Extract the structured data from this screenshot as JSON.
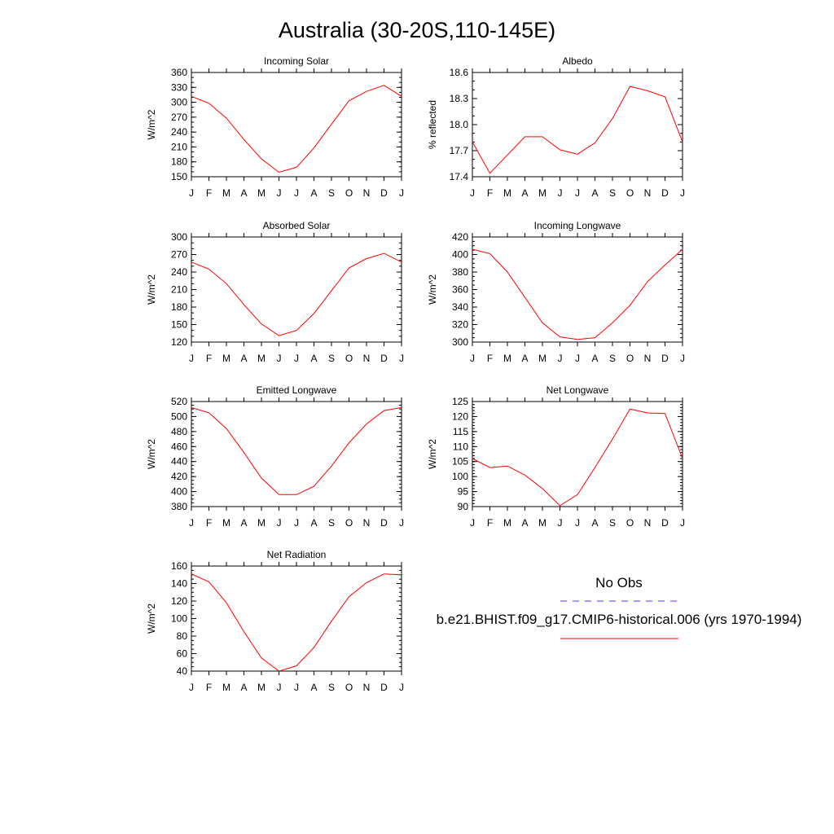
{
  "figure": {
    "title": "Australia (30-20S,110-145E)",
    "legend": [
      {
        "label": "No Obs",
        "color": "#3c3cff",
        "style": "dashed"
      },
      {
        "label": "b.e21.BHIST.f09_g17.CMIP6-historical.006 (yrs 1970-1994)",
        "color": "#ff0000",
        "style": "solid"
      }
    ]
  },
  "chart_data": [
    {
      "type": "line",
      "title": "Incoming Solar",
      "ylabel": "W/m^2",
      "x": [
        "J",
        "F",
        "M",
        "A",
        "M",
        "J",
        "J",
        "A",
        "S",
        "O",
        "N",
        "D",
        "J"
      ],
      "ylim": [
        150,
        360
      ],
      "yticks": [
        150,
        180,
        210,
        240,
        270,
        300,
        330,
        360
      ],
      "minor_step": 10,
      "series": [
        {
          "name": "b.e21.BHIST.f09_g17.CMIP6-historical.006 (yrs 1970-1994)",
          "color": "#ff0000",
          "values": [
            312,
            298,
            268,
            225,
            186,
            159,
            169,
            208,
            256,
            303,
            322,
            334,
            312
          ]
        }
      ]
    },
    {
      "type": "line",
      "title": "Albedo",
      "ylabel": "% reflected",
      "x": [
        "J",
        "F",
        "M",
        "A",
        "M",
        "J",
        "J",
        "A",
        "S",
        "O",
        "N",
        "D",
        "J"
      ],
      "ylim": [
        17.4,
        18.6
      ],
      "yticks": [
        17.4,
        17.7,
        18.0,
        18.3,
        18.6
      ],
      "decimals": 1,
      "minor_step": 0.1,
      "series": [
        {
          "name": "b.e21.BHIST.f09_g17.CMIP6-historical.006 (yrs 1970-1994)",
          "color": "#ff0000",
          "values": [
            17.8,
            17.44,
            17.65,
            17.86,
            17.86,
            17.71,
            17.66,
            17.79,
            18.07,
            18.44,
            18.39,
            18.32,
            17.8
          ]
        }
      ]
    },
    {
      "type": "line",
      "title": "Absorbed Solar",
      "ylabel": "W/m^2",
      "x": [
        "J",
        "F",
        "M",
        "A",
        "M",
        "J",
        "J",
        "A",
        "S",
        "O",
        "N",
        "D",
        "J"
      ],
      "ylim": [
        120,
        300
      ],
      "yticks": [
        120,
        150,
        180,
        210,
        240,
        270,
        300
      ],
      "minor_step": 10,
      "series": [
        {
          "name": "b.e21.BHIST.f09_g17.CMIP6-historical.006 (yrs 1970-1994)",
          "color": "#ff0000",
          "values": [
            257,
            245,
            220,
            184,
            151,
            131,
            140,
            169,
            208,
            247,
            263,
            272,
            257
          ]
        }
      ]
    },
    {
      "type": "line",
      "title": "Incoming Longwave",
      "ylabel": "W/m^2",
      "x": [
        "J",
        "F",
        "M",
        "A",
        "M",
        "J",
        "J",
        "A",
        "S",
        "O",
        "N",
        "D",
        "J"
      ],
      "ylim": [
        300,
        420
      ],
      "yticks": [
        300,
        320,
        340,
        360,
        380,
        400,
        420
      ],
      "minor_step": 5,
      "series": [
        {
          "name": "b.e21.BHIST.f09_g17.CMIP6-historical.006 (yrs 1970-1994)",
          "color": "#ff0000",
          "values": [
            406,
            401,
            380,
            351,
            322,
            306,
            303,
            305,
            322,
            342,
            369,
            388,
            406
          ]
        }
      ]
    },
    {
      "type": "line",
      "title": "Emitted Longwave",
      "ylabel": "W/m^2",
      "x": [
        "J",
        "F",
        "M",
        "A",
        "M",
        "J",
        "J",
        "A",
        "S",
        "O",
        "N",
        "D",
        "J"
      ],
      "ylim": [
        380,
        520
      ],
      "yticks": [
        380,
        400,
        420,
        440,
        460,
        480,
        500,
        520
      ],
      "minor_step": 5,
      "series": [
        {
          "name": "b.e21.BHIST.f09_g17.CMIP6-historical.006 (yrs 1970-1994)",
          "color": "#ff0000",
          "values": [
            512,
            505,
            484,
            452,
            418,
            396,
            396,
            407,
            434,
            465,
            490,
            508,
            512
          ]
        }
      ]
    },
    {
      "type": "line",
      "title": "Net Longwave",
      "ylabel": "W/m^2",
      "x": [
        "J",
        "F",
        "M",
        "A",
        "M",
        "J",
        "J",
        "A",
        "S",
        "O",
        "N",
        "D",
        "J"
      ],
      "ylim": [
        90,
        125
      ],
      "yticks": [
        90,
        95,
        100,
        105,
        110,
        115,
        120,
        125
      ],
      "minor_step": 1,
      "series": [
        {
          "name": "b.e21.BHIST.f09_g17.CMIP6-historical.006 (yrs 1970-1994)",
          "color": "#ff0000",
          "values": [
            106.0,
            103.0,
            103.5,
            100.5,
            96.0,
            90.3,
            94.0,
            103.0,
            112.5,
            122.5,
            121.2,
            121.0,
            106.0
          ]
        }
      ]
    },
    {
      "type": "line",
      "title": "Net Radiation",
      "ylabel": "W/m^2",
      "x": [
        "J",
        "F",
        "M",
        "A",
        "M",
        "J",
        "J",
        "A",
        "S",
        "O",
        "N",
        "D",
        "J"
      ],
      "ylim": [
        40,
        160
      ],
      "yticks": [
        40,
        60,
        80,
        100,
        120,
        140,
        160
      ],
      "minor_step": 5,
      "series": [
        {
          "name": "b.e21.BHIST.f09_g17.CMIP6-historical.006 (yrs 1970-1994)",
          "color": "#ff0000",
          "values": [
            151,
            142,
            118,
            85,
            55,
            40,
            46,
            67,
            97,
            125,
            141,
            151,
            150
          ]
        }
      ]
    }
  ]
}
